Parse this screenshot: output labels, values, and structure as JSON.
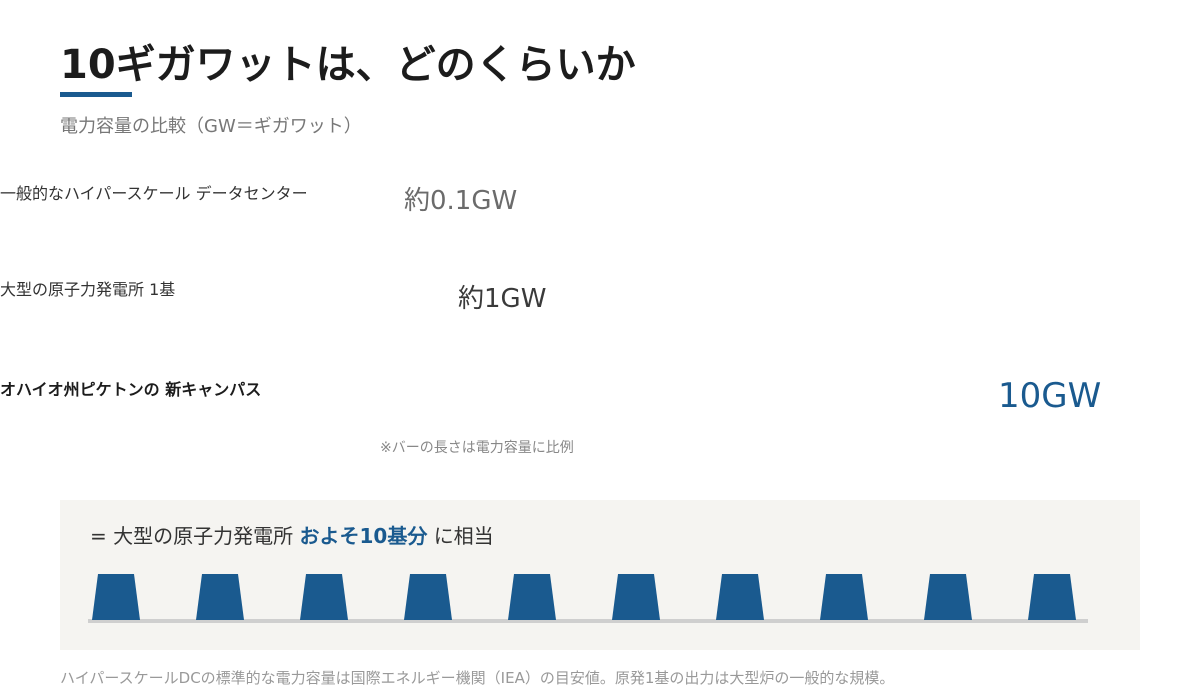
{
  "chart_data": {
    "type": "bar",
    "orientation": "horizontal",
    "title": "10ギガワットは、どのくらいか",
    "subtitle": "電力容量の比較（GW＝ギガワット）",
    "categories": [
      "一般的なハイパースケール\nデータセンター",
      "大型の原子力発電所 1基",
      "オハイオ州ピケトンの\n新キャンパス"
    ],
    "values": [
      0.1,
      1,
      10
    ],
    "value_labels": [
      "約0.1GW",
      "約1GW",
      "10GW"
    ],
    "colors": [
      "#b9c5d1",
      "#8fa7bd",
      "#1a5a8f"
    ],
    "label_colors": [
      "#6b6b6b",
      "#3a3a3a",
      "#1a5a8f"
    ],
    "highlight_category": 2,
    "note": "※バーの長さは電力容量に比例"
  },
  "equivalent": {
    "prefix": "= 大型の原子力発電所",
    "highlight": "およそ10基分",
    "suffix": "に相当",
    "plants": 10
  },
  "footer": "ハイパースケールDCの標準的な電力容量は国際エネルギー機関（IEA）の目安値。原発1基の出力は大型炉の一般的な規模。"
}
